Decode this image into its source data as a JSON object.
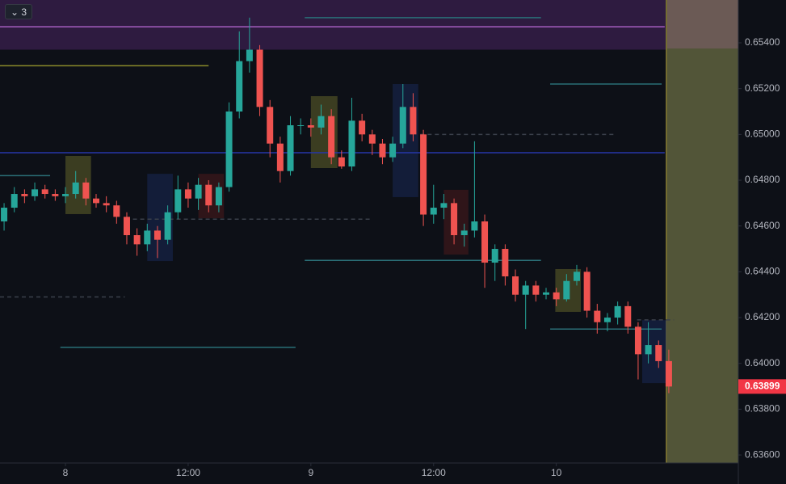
{
  "indicator_count": "3",
  "chart_data": {
    "type": "candlestick",
    "up_color": "#26a69a",
    "down_color": "#ef5350",
    "xlim": [
      -6.4,
      65.8
    ],
    "xticks": [
      {
        "value": 0,
        "label": "8"
      },
      {
        "value": 12,
        "label": "12:00"
      },
      {
        "value": 24,
        "label": "9"
      },
      {
        "value": 36,
        "label": "12:00"
      },
      {
        "value": 48,
        "label": "10"
      }
    ],
    "ylim": [
      0.63565,
      0.65587
    ],
    "yticks": [
      {
        "value": 0.636,
        "label": "0.63600"
      },
      {
        "value": 0.638,
        "label": "0.63800"
      },
      {
        "value": 0.64,
        "label": "0.64000"
      },
      {
        "value": 0.642,
        "label": "0.64200"
      },
      {
        "value": 0.644,
        "label": "0.64400"
      },
      {
        "value": 0.646,
        "label": "0.64600"
      },
      {
        "value": 0.648,
        "label": "0.64800"
      },
      {
        "value": 0.65,
        "label": "0.65000"
      },
      {
        "value": 0.652,
        "label": "0.65200"
      },
      {
        "value": 0.654,
        "label": "0.65400"
      }
    ],
    "last_price": {
      "value": 0.63899,
      "label": "0.63899"
    },
    "x": [
      -6,
      -5,
      -4,
      -3,
      -2,
      -1,
      0,
      1,
      2,
      3,
      4,
      5,
      6,
      7,
      8,
      9,
      10,
      11,
      12,
      13,
      14,
      15,
      16,
      17,
      18,
      19,
      20,
      21,
      22,
      23,
      24,
      25,
      26,
      27,
      28,
      29,
      30,
      31,
      32,
      33,
      34,
      35,
      36,
      37,
      38,
      39,
      40,
      41,
      42,
      43,
      44,
      45,
      46,
      47,
      48,
      49,
      50,
      51,
      52,
      53,
      54,
      55,
      56,
      57,
      58,
      59
    ],
    "open": [
      0.6462,
      0.6468,
      0.6474,
      0.6473,
      0.6476,
      0.6474,
      0.6473,
      0.6474,
      0.6479,
      0.6472,
      0.647,
      0.6469,
      0.6464,
      0.6456,
      0.6452,
      0.6458,
      0.6454,
      0.6466,
      0.6476,
      0.6472,
      0.6478,
      0.6469,
      0.6477,
      0.651,
      0.6532,
      0.6537,
      0.6512,
      0.6496,
      0.6484,
      0.6504,
      0.6504,
      0.6503,
      0.6508,
      0.649,
      0.6486,
      0.6506,
      0.65,
      0.6496,
      0.649,
      0.6496,
      0.6512,
      0.65,
      0.6465,
      0.6468,
      0.647,
      0.6456,
      0.6458,
      0.6462,
      0.6444,
      0.645,
      0.6438,
      0.643,
      0.6434,
      0.643,
      0.6431,
      0.6428,
      0.6436,
      0.644,
      0.6423,
      0.6418,
      0.642,
      0.6425,
      0.6416,
      0.6404,
      0.6408,
      0.6401
    ],
    "high": [
      0.647,
      0.6477,
      0.6476,
      0.6479,
      0.6478,
      0.6476,
      0.6477,
      0.6484,
      0.6481,
      0.6474,
      0.6473,
      0.6471,
      0.6466,
      0.6459,
      0.6461,
      0.646,
      0.6469,
      0.6482,
      0.6479,
      0.6481,
      0.648,
      0.6479,
      0.6514,
      0.6545,
      0.6551,
      0.6539,
      0.6515,
      0.6499,
      0.6508,
      0.6507,
      0.6507,
      0.6513,
      0.6511,
      0.6493,
      0.6516,
      0.6509,
      0.6502,
      0.6498,
      0.6499,
      0.6522,
      0.6518,
      0.6502,
      0.6478,
      0.6474,
      0.6472,
      0.6461,
      0.6497,
      0.6465,
      0.6452,
      0.6452,
      0.6441,
      0.6436,
      0.6436,
      0.6433,
      0.6433,
      0.6439,
      0.6443,
      0.6442,
      0.6426,
      0.6422,
      0.6427,
      0.6427,
      0.6418,
      0.6418,
      0.641,
      0.6406
    ],
    "low": [
      0.6458,
      0.6466,
      0.647,
      0.6471,
      0.6472,
      0.6471,
      0.647,
      0.6472,
      0.6469,
      0.6468,
      0.6466,
      0.6461,
      0.6452,
      0.6447,
      0.6449,
      0.6446,
      0.6452,
      0.6463,
      0.6468,
      0.6467,
      0.6466,
      0.6466,
      0.6475,
      0.6507,
      0.6527,
      0.6508,
      0.649,
      0.6479,
      0.6482,
      0.65,
      0.6499,
      0.65,
      0.6487,
      0.6485,
      0.6484,
      0.6497,
      0.6491,
      0.6487,
      0.6488,
      0.6494,
      0.6497,
      0.646,
      0.6461,
      0.6463,
      0.6452,
      0.6451,
      0.6455,
      0.6433,
      0.6436,
      0.6434,
      0.6427,
      0.6415,
      0.6427,
      0.6428,
      0.6425,
      0.6427,
      0.6434,
      0.642,
      0.6413,
      0.6414,
      0.6417,
      0.6413,
      0.6393,
      0.64,
      0.6398,
      0.6387
    ],
    "close": [
      0.6468,
      0.6474,
      0.6473,
      0.6476,
      0.6474,
      0.6473,
      0.6474,
      0.6479,
      0.6472,
      0.647,
      0.6469,
      0.6464,
      0.6456,
      0.6452,
      0.6458,
      0.6454,
      0.6466,
      0.6476,
      0.6472,
      0.6478,
      0.6469,
      0.6477,
      0.651,
      0.6532,
      0.6537,
      0.6512,
      0.6496,
      0.6484,
      0.6504,
      0.6504,
      0.6503,
      0.6508,
      0.649,
      0.6486,
      0.6506,
      0.65,
      0.6496,
      0.649,
      0.6496,
      0.6512,
      0.65,
      0.6465,
      0.6468,
      0.647,
      0.6456,
      0.6458,
      0.6462,
      0.6444,
      0.645,
      0.6438,
      0.643,
      0.6434,
      0.643,
      0.6431,
      0.6428,
      0.6436,
      0.644,
      0.6423,
      0.6418,
      0.642,
      0.6425,
      0.6416,
      0.6404,
      0.6408,
      0.6401,
      0.63899
    ],
    "zones": [
      {
        "x0": -6.4,
        "x1": 58.7,
        "low": 0.6537,
        "high": 0.65587,
        "color": "rgba(110,50,140,0.35)"
      }
    ],
    "boxes": [
      {
        "x0": 0,
        "x1": 2.5,
        "low": 0.64652,
        "high": 0.64906,
        "color": "rgba(130,130,50,0.4)"
      },
      {
        "x0": 8,
        "x1": 10.5,
        "low": 0.64447,
        "high": 0.64828,
        "color": "rgba(30,50,110,0.4)"
      },
      {
        "x0": 13,
        "x1": 15.5,
        "low": 0.64634,
        "high": 0.64828,
        "color": "rgba(100,30,30,0.4)"
      },
      {
        "x0": 24,
        "x1": 26.6,
        "low": 0.64853,
        "high": 0.65167,
        "color": "rgba(130,130,50,0.4)"
      },
      {
        "x0": 32,
        "x1": 34.5,
        "low": 0.64726,
        "high": 0.6522,
        "color": "rgba(30,50,110,0.4)"
      },
      {
        "x0": 37,
        "x1": 39.4,
        "low": 0.64475,
        "high": 0.64758,
        "color": "rgba(100,30,30,0.4)"
      },
      {
        "x0": 47.9,
        "x1": 50.4,
        "low": 0.64225,
        "high": 0.64412,
        "color": "rgba(130,130,50,0.4)"
      },
      {
        "x0": 56.4,
        "x1": 58.8,
        "low": 0.63914,
        "high": 0.64189,
        "color": "rgba(30,50,110,0.4)"
      }
    ],
    "levels": [
      {
        "price": 0.6547,
        "x0": -6.4,
        "x1": 58.6,
        "color": "#a45cc0",
        "dashed": false
      },
      {
        "price": 0.653,
        "x0": -6.4,
        "x1": 14,
        "color": "#8a8a2a",
        "dashed": false
      },
      {
        "price": 0.6492,
        "x0": -6.4,
        "x1": 58.6,
        "color": "#2636a8",
        "dashed": false
      },
      {
        "price": 0.6551,
        "x0": 23.4,
        "x1": 46.5,
        "color": "#2a6f77",
        "dashed": false
      },
      {
        "price": 0.6522,
        "x0": 47.4,
        "x1": 58.3,
        "color": "#2a6f77",
        "dashed": false
      },
      {
        "price": 0.6445,
        "x0": 23.4,
        "x1": 46.5,
        "color": "#2a6f77",
        "dashed": false
      },
      {
        "price": 0.6407,
        "x0": -0.5,
        "x1": 22.5,
        "color": "#2a6f77",
        "dashed": false
      },
      {
        "price": 0.6415,
        "x0": 47.4,
        "x1": 58.3,
        "color": "#2a6f77",
        "dashed": false
      },
      {
        "price": 0.6482,
        "x0": -6.4,
        "x1": -1.5,
        "color": "#2a6f77",
        "dashed": false
      },
      {
        "price": 0.65,
        "x0": 34.7,
        "x1": 53.8,
        "color": "#3a3f4a",
        "dashed": true
      },
      {
        "price": 0.6463,
        "x0": 6.6,
        "x1": 29.9,
        "color": "#3a3f4a",
        "dashed": true
      },
      {
        "price": 0.6429,
        "x0": -6.4,
        "x1": 5.8,
        "color": "#3a3f4a",
        "dashed": true
      },
      {
        "price": 0.6419,
        "x0": 55.9,
        "x1": 59.5,
        "color": "#3a3f4a",
        "dashed": true
      }
    ]
  }
}
